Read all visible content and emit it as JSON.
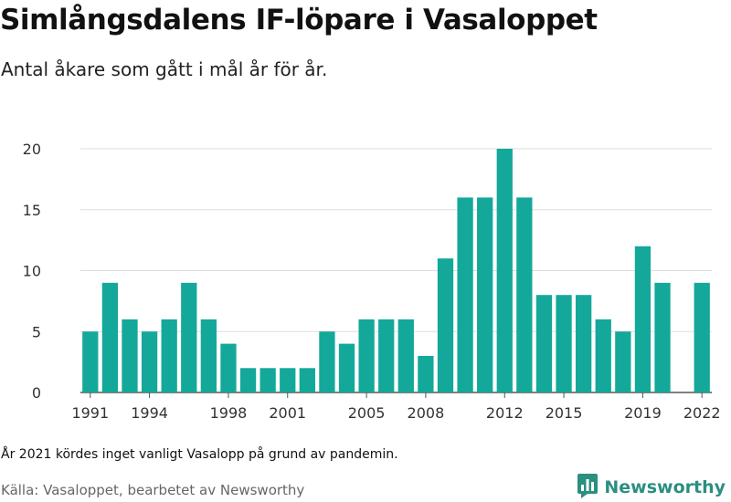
{
  "title": "Simlångsdalens IF-löpare i Vasaloppet",
  "subtitle": "Antal åkare som gått i mål år för år.",
  "note": "År 2021 kördes inget vanligt Vasalopp på grund av pandemin.",
  "source": "Källa: Vasaloppet, bearbetet av Newsworthy",
  "brand": {
    "name": "Newsworthy",
    "icon": "newsworthy-logo-icon",
    "color": "#2b8f81"
  },
  "colors": {
    "bar": "#13a89a",
    "grid": "#dddddd",
    "axis": "#555555"
  },
  "chart_data": {
    "type": "bar",
    "title": "Simlångsdalens IF-löpare i Vasaloppet",
    "subtitle": "Antal åkare som gått i mål år för år.",
    "xlabel": "",
    "ylabel": "",
    "ylim": [
      0,
      20
    ],
    "yticks": [
      0,
      5,
      10,
      15,
      20
    ],
    "xticks": [
      1991,
      1994,
      1998,
      2001,
      2005,
      2008,
      2012,
      2015,
      2019,
      2022
    ],
    "grid": true,
    "categories": [
      1991,
      1992,
      1993,
      1994,
      1995,
      1996,
      1997,
      1998,
      1999,
      2000,
      2001,
      2002,
      2003,
      2004,
      2005,
      2006,
      2007,
      2008,
      2009,
      2010,
      2011,
      2012,
      2013,
      2014,
      2015,
      2016,
      2017,
      2018,
      2019,
      2020,
      2021,
      2022
    ],
    "values": [
      5,
      9,
      6,
      5,
      6,
      9,
      6,
      4,
      2,
      2,
      2,
      2,
      5,
      4,
      6,
      6,
      6,
      3,
      11,
      16,
      16,
      20,
      16,
      8,
      8,
      8,
      6,
      5,
      12,
      9,
      null,
      9
    ]
  }
}
